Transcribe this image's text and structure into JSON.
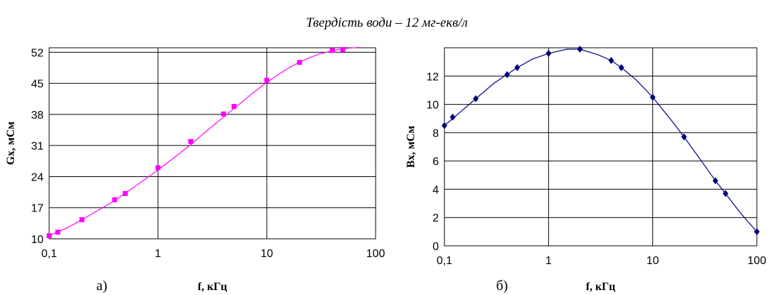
{
  "figure": {
    "title": "Твердість води – 12 мг-екв/л"
  },
  "chart_data": [
    {
      "type": "line",
      "panel_label": "а)",
      "xlabel": "f, кГц",
      "ylabel": "Gx, мСм",
      "x_scale": "log",
      "xlim": [
        0.1,
        100
      ],
      "ylim": [
        10,
        53
      ],
      "x_ticks": [
        0.1,
        1,
        10,
        100
      ],
      "x_tick_labels": [
        "0,1",
        "1",
        "10",
        "100"
      ],
      "y_ticks": [
        10,
        17,
        24,
        31,
        38,
        45,
        52
      ],
      "y_tick_labels": [
        "10",
        "17",
        "24",
        "31",
        "38",
        "45",
        "52"
      ],
      "grid": true,
      "colors": {
        "series": "#ff00ff"
      },
      "marker": "square",
      "series": [
        {
          "x": [
            0.1,
            0.12,
            0.2,
            0.4,
            0.5,
            1,
            2,
            4,
            5,
            10,
            20,
            40,
            50
          ],
          "y": [
            10.7,
            11.5,
            14.3,
            18.8,
            20.2,
            26,
            31.9,
            38.1,
            39.8,
            45.7,
            49.7,
            52.4,
            52.6
          ]
        }
      ],
      "curve": {
        "x": [
          0.1,
          0.15,
          0.2,
          0.3,
          0.4,
          0.6,
          1,
          1.5,
          2,
          3,
          4,
          5,
          7,
          10,
          15,
          20,
          30,
          40,
          50,
          70
        ],
        "y": [
          10.7,
          12.6,
          14.3,
          16.8,
          18.6,
          21.6,
          25.5,
          28.8,
          31.2,
          34.9,
          37.4,
          39.3,
          42.3,
          45.2,
          48.1,
          49.8,
          51.6,
          52.3,
          52.8,
          53.1
        ]
      }
    },
    {
      "type": "line",
      "panel_label": "б)",
      "xlabel": "f, кГц",
      "ylabel": "Bx, мСм",
      "x_scale": "log",
      "xlim": [
        0.1,
        100
      ],
      "ylim": [
        0,
        14
      ],
      "x_ticks": [
        0.1,
        1,
        10,
        100
      ],
      "x_tick_labels": [
        "0,1",
        "1",
        "10",
        "100"
      ],
      "y_ticks": [
        0,
        2,
        4,
        6,
        8,
        10,
        12
      ],
      "y_tick_labels": [
        "0",
        "2",
        "4",
        "6",
        "8",
        "10",
        "12"
      ],
      "grid": true,
      "colors": {
        "series": "#000080"
      },
      "marker": "diamond",
      "series": [
        {
          "x": [
            0.1,
            0.12,
            0.2,
            0.4,
            0.5,
            1,
            2,
            4,
            5,
            10,
            20,
            40,
            50,
            100
          ],
          "y": [
            8.5,
            9.1,
            10.4,
            12.1,
            12.6,
            13.6,
            13.9,
            13.1,
            12.6,
            10.5,
            7.7,
            4.6,
            3.7,
            1.0
          ]
        }
      ],
      "curve": {
        "x": [
          0.1,
          0.15,
          0.2,
          0.3,
          0.5,
          0.7,
          1,
          1.5,
          2,
          3,
          4,
          5,
          7,
          10,
          15,
          20,
          30,
          40,
          50,
          70,
          100
        ],
        "y": [
          8.5,
          9.6,
          10.4,
          11.5,
          12.6,
          13.2,
          13.6,
          13.9,
          13.9,
          13.5,
          13.1,
          12.6,
          11.7,
          10.5,
          8.9,
          7.7,
          5.9,
          4.6,
          3.7,
          2.3,
          1.0
        ]
      }
    }
  ]
}
